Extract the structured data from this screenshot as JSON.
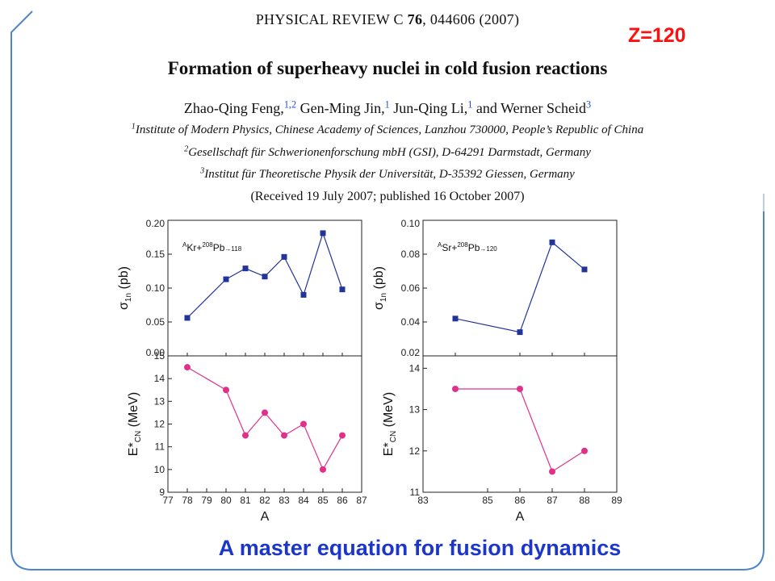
{
  "paper": {
    "journal_prefix": "PHYSICAL REVIEW C",
    "volume": "76",
    "article_rest": ", 044606 (2007)",
    "title": "Formation of superheavy nuclei in cold fusion reactions",
    "authors": [
      {
        "name": "Zhao-Qing Feng,",
        "aff": "1,2"
      },
      {
        "name": "Gen-Ming Jin,",
        "aff": "1"
      },
      {
        "name": "Jun-Qing Li,",
        "aff": "1"
      },
      {
        "name": "and Werner Scheid",
        "aff": "3"
      }
    ],
    "affiliations": [
      {
        "num": "1",
        "text": "Institute of Modern Physics, Chinese Academy of Sciences, Lanzhou 730000, People’s Republic of China"
      },
      {
        "num": "2",
        "text": "Gesellschaft für Schwerionenforschung mbH (GSI), D-64291 Darmstadt, Germany"
      },
      {
        "num": "3",
        "text": "Institut für Theoretische Physik der Universität, D-35392 Giessen, Germany"
      }
    ],
    "dates": "(Received 19 July 2007; published 16 October 2007)"
  },
  "tag": "Z=120",
  "caption": "A master equation for fusion dynamics",
  "colors": {
    "accent_blue": "#1f4fd8",
    "series_blue": "#22349a",
    "series_magenta": "#e0308a",
    "tag_red": "#ff1010",
    "caption_blue": "#1b36c8",
    "frame_blue": "#4f86c6"
  },
  "chart_data": [
    {
      "type": "line",
      "panel": "top-left",
      "annotation": {
        "mass": "A",
        "projectile": "Kr",
        "target_mass": "208",
        "target": "Pb",
        "arrow": "→",
        "product": "118"
      },
      "ylabel": {
        "symbol": "σ",
        "sub": "1n",
        "unit": "(pb)"
      },
      "x": [
        78,
        80,
        81,
        82,
        83,
        84,
        85,
        86
      ],
      "values": [
        0.056,
        0.113,
        0.129,
        0.117,
        0.146,
        0.09,
        0.181,
        0.098
      ],
      "xlim": [
        77,
        87
      ],
      "ylim": [
        0.0,
        0.2
      ],
      "yticks": [
        "0.00",
        "0.05",
        "0.10",
        "0.15",
        "0.20"
      ],
      "marker": "square"
    },
    {
      "type": "line",
      "panel": "bottom-left",
      "ylabel": {
        "symbol": "E*",
        "sub": "CN",
        "unit": "(MeV)"
      },
      "xlabel": "A",
      "x": [
        78,
        80,
        81,
        82,
        83,
        84,
        85,
        86
      ],
      "values": [
        14.5,
        13.5,
        11.5,
        12.5,
        11.5,
        12.0,
        10.0,
        11.5
      ],
      "xlim": [
        77,
        87
      ],
      "ylim": [
        9,
        15
      ],
      "xticks": [
        "77",
        "78",
        "79",
        "80",
        "81",
        "82",
        "83",
        "84",
        "85",
        "86",
        "87"
      ],
      "yticks": [
        "9",
        "10",
        "11",
        "12",
        "13",
        "14",
        "15"
      ],
      "marker": "circle"
    },
    {
      "type": "line",
      "panel": "top-right",
      "annotation": {
        "mass": "A",
        "projectile": "Sr",
        "target_mass": "208",
        "target": "Pb",
        "arrow": "→",
        "product": "120"
      },
      "ylabel": {
        "symbol": "σ",
        "sub": "1n",
        "unit": "(pb)"
      },
      "x": [
        84,
        86,
        87,
        88
      ],
      "values": [
        0.042,
        0.034,
        0.087,
        0.071
      ],
      "xlim": [
        83,
        89
      ],
      "ylim": [
        0.02,
        0.1
      ],
      "yticks": [
        "0.02",
        "0.04",
        "0.06",
        "0.08",
        "0.10"
      ],
      "marker": "square"
    },
    {
      "type": "line",
      "panel": "bottom-right",
      "ylabel": {
        "symbol": "E*",
        "sub": "CN",
        "unit": "(MeV)"
      },
      "xlabel": "A",
      "x": [
        84,
        86,
        87,
        88
      ],
      "values": [
        13.5,
        13.5,
        11.5,
        12.0
      ],
      "xlim": [
        83,
        89
      ],
      "ylim": [
        11,
        14.3
      ],
      "xticks": [
        "83",
        "85",
        "86",
        "87",
        "88",
        "89"
      ],
      "xtick_values": [
        83,
        85,
        86,
        87,
        88,
        89
      ],
      "yticks": [
        "11",
        "12",
        "13",
        "14"
      ],
      "marker": "circle"
    }
  ]
}
